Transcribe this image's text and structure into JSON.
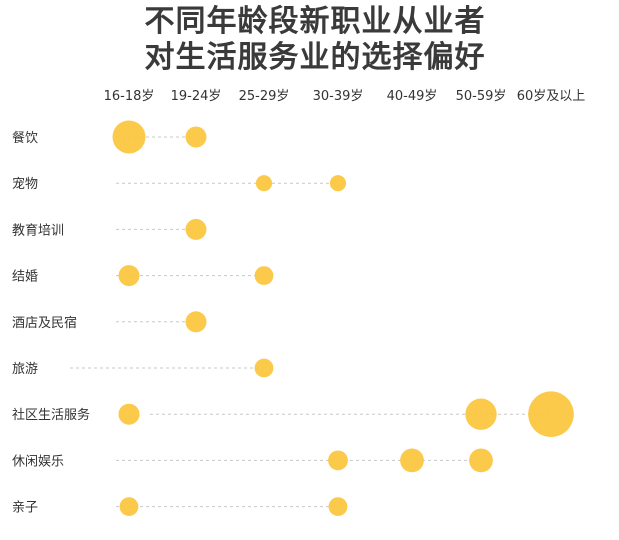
{
  "chart_data": {
    "type": "scatter",
    "title_lines": [
      "不同年龄段新职业从业者",
      "对生活服务业的选择偏好"
    ],
    "x_categories": [
      "16-18岁",
      "19-24岁",
      "25-29岁",
      "30-39岁",
      "40-49岁",
      "50-59岁",
      "60岁及以上"
    ],
    "y_categories": [
      "餐饮",
      "宠物",
      "教育培训",
      "结婚",
      "酒店及民宿",
      "旅游",
      "社区生活服务",
      "休闲娱乐",
      "亲子"
    ],
    "bubble_color": "#fcc63c",
    "line_color": "#c8c8c8",
    "points": [
      {
        "category": "餐饮",
        "age": "16-18岁",
        "size": 5
      },
      {
        "category": "餐饮",
        "age": "19-24岁",
        "size": 2
      },
      {
        "category": "宠物",
        "age": "25-29岁",
        "size": 1.2
      },
      {
        "category": "宠物",
        "age": "30-39岁",
        "size": 1.2
      },
      {
        "category": "教育培训",
        "age": "19-24岁",
        "size": 2
      },
      {
        "category": "结婚",
        "age": "16-18岁",
        "size": 2
      },
      {
        "category": "结婚",
        "age": "25-29岁",
        "size": 1.6
      },
      {
        "category": "酒店及民宿",
        "age": "19-24岁",
        "size": 2
      },
      {
        "category": "旅游",
        "age": "25-29岁",
        "size": 1.6
      },
      {
        "category": "社区生活服务",
        "age": "16-18岁",
        "size": 2
      },
      {
        "category": "社区生活服务",
        "age": "50-59岁",
        "size": 4.5
      },
      {
        "category": "社区生活服务",
        "age": "60岁及以上",
        "size": 9.5
      },
      {
        "category": "休闲娱乐",
        "age": "30-39岁",
        "size": 1.8
      },
      {
        "category": "休闲娱乐",
        "age": "40-49岁",
        "size": 2.6
      },
      {
        "category": "休闲娱乐",
        "age": "50-59岁",
        "size": 2.6
      },
      {
        "category": "亲子",
        "age": "16-18岁",
        "size": 1.6
      },
      {
        "category": "亲子",
        "age": "30-39岁",
        "size": 1.6
      }
    ]
  }
}
